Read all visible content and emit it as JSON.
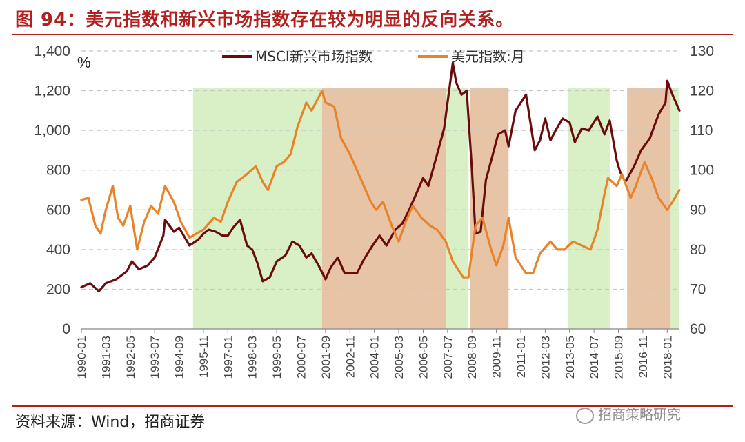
{
  "title": "图 94：美元指数和新兴市场指数存在较为明显的反向关系。",
  "source": "资料来源：Wind，招商证券",
  "watermark": "招商策略研究",
  "colors": {
    "brand": "#b2201f",
    "msci": "#6b0c0c",
    "usd": "#e8832a",
    "green_band": "#d9efc6",
    "tan_band": "#e7c4a6"
  },
  "chart_data": {
    "type": "line",
    "left_unit": "%",
    "left_axis": {
      "min": 0,
      "max": 1400,
      "ticks": [
        0,
        200,
        400,
        600,
        800,
        1000,
        1200,
        1400
      ],
      "tick_labels": [
        "0",
        "200",
        "400",
        "600",
        "800",
        "1,000",
        "1,200",
        "1,400"
      ]
    },
    "right_axis": {
      "min": 60,
      "max": 130,
      "ticks": [
        60,
        70,
        80,
        90,
        100,
        110,
        120,
        130
      ],
      "tick_labels": [
        "60",
        "70",
        "80",
        "90",
        "100",
        "110",
        "120",
        "130"
      ]
    },
    "x_axis": {
      "start": "1990-01",
      "end": "2018-08",
      "tick_labels": [
        "1990-01",
        "1991-03",
        "1992-05",
        "1993-07",
        "1994-09",
        "1995-11",
        "1997-01",
        "1998-03",
        "1999-05",
        "2000-07",
        "2001-09",
        "2002-11",
        "2004-01",
        "2005-03",
        "2006-05",
        "2007-07",
        "2008-09",
        "2009-11",
        "2011-01",
        "2012-03",
        "2013-05",
        "2014-07",
        "2015-09",
        "2016-11",
        "2018-01"
      ]
    },
    "legend": "top-center",
    "grid": "horizontal dashed",
    "shaded_periods": [
      {
        "start": "1995-05",
        "end": "2001-07",
        "color": "green"
      },
      {
        "start": "2001-07",
        "end": "2007-06",
        "color": "tan"
      },
      {
        "start": "2007-06",
        "end": "2008-07",
        "color": "green"
      },
      {
        "start": "2008-08",
        "end": "2010-06",
        "color": "tan"
      },
      {
        "start": "2013-04",
        "end": "2015-04",
        "color": "green"
      },
      {
        "start": "2016-02",
        "end": "2018-03",
        "color": "tan"
      },
      {
        "start": "2018-03",
        "end": "2018-08",
        "color": "green"
      }
    ],
    "series": [
      {
        "name": "MSCI新兴市场指数",
        "axis": "left",
        "color": "#6b0c0c",
        "points": [
          [
            "1990-01",
            210
          ],
          [
            "1990-06",
            230
          ],
          [
            "1990-11",
            190
          ],
          [
            "1991-03",
            230
          ],
          [
            "1991-09",
            250
          ],
          [
            "1992-03",
            290
          ],
          [
            "1992-06",
            340
          ],
          [
            "1992-10",
            300
          ],
          [
            "1993-03",
            320
          ],
          [
            "1993-07",
            360
          ],
          [
            "1993-12",
            470
          ],
          [
            "1994-01",
            550
          ],
          [
            "1994-06",
            490
          ],
          [
            "1994-09",
            510
          ],
          [
            "1995-01",
            450
          ],
          [
            "1995-03",
            420
          ],
          [
            "1995-08",
            450
          ],
          [
            "1995-11",
            480
          ],
          [
            "1996-02",
            500
          ],
          [
            "1996-06",
            490
          ],
          [
            "1996-10",
            470
          ],
          [
            "1997-01",
            470
          ],
          [
            "1997-04",
            510
          ],
          [
            "1997-08",
            550
          ],
          [
            "1997-12",
            420
          ],
          [
            "1998-03",
            400
          ],
          [
            "1998-06",
            330
          ],
          [
            "1998-09",
            240
          ],
          [
            "1999-01",
            260
          ],
          [
            "1999-05",
            340
          ],
          [
            "1999-10",
            370
          ],
          [
            "2000-02",
            440
          ],
          [
            "2000-06",
            420
          ],
          [
            "2000-10",
            360
          ],
          [
            "2001-01",
            380
          ],
          [
            "2001-05",
            320
          ],
          [
            "2001-09",
            250
          ],
          [
            "2001-12",
            310
          ],
          [
            "2002-04",
            360
          ],
          [
            "2002-08",
            280
          ],
          [
            "2002-11",
            280
          ],
          [
            "2003-03",
            280
          ],
          [
            "2003-07",
            350
          ],
          [
            "2003-12",
            420
          ],
          [
            "2004-04",
            470
          ],
          [
            "2004-08",
            420
          ],
          [
            "2005-01",
            500
          ],
          [
            "2005-05",
            530
          ],
          [
            "2005-09",
            600
          ],
          [
            "2006-01",
            680
          ],
          [
            "2006-05",
            760
          ],
          [
            "2006-08",
            720
          ],
          [
            "2007-01",
            880
          ],
          [
            "2007-05",
            1010
          ],
          [
            "2007-10",
            1340
          ],
          [
            "2007-12",
            1240
          ],
          [
            "2008-03",
            1180
          ],
          [
            "2008-06",
            1200
          ],
          [
            "2008-09",
            800
          ],
          [
            "2008-11",
            480
          ],
          [
            "2009-02",
            490
          ],
          [
            "2009-05",
            750
          ],
          [
            "2009-09",
            880
          ],
          [
            "2009-12",
            980
          ],
          [
            "2010-04",
            1000
          ],
          [
            "2010-06",
            920
          ],
          [
            "2010-10",
            1100
          ],
          [
            "2011-04",
            1180
          ],
          [
            "2011-09",
            900
          ],
          [
            "2011-12",
            950
          ],
          [
            "2012-03",
            1060
          ],
          [
            "2012-06",
            950
          ],
          [
            "2012-09",
            1000
          ],
          [
            "2013-01",
            1060
          ],
          [
            "2013-05",
            1040
          ],
          [
            "2013-08",
            940
          ],
          [
            "2013-12",
            1010
          ],
          [
            "2014-04",
            1000
          ],
          [
            "2014-09",
            1070
          ],
          [
            "2015-01",
            980
          ],
          [
            "2015-04",
            1050
          ],
          [
            "2015-08",
            850
          ],
          [
            "2015-10",
            790
          ],
          [
            "2016-01",
            740
          ],
          [
            "2016-06",
            820
          ],
          [
            "2016-10",
            900
          ],
          [
            "2017-03",
            960
          ],
          [
            "2017-08",
            1080
          ],
          [
            "2017-12",
            1140
          ],
          [
            "2018-01",
            1250
          ],
          [
            "2018-04",
            1180
          ],
          [
            "2018-08",
            1100
          ]
        ]
      },
      {
        "name": "美元指数:月",
        "axis": "right",
        "color": "#e8832a",
        "points": [
          [
            "1990-01",
            92.5
          ],
          [
            "1990-05",
            93
          ],
          [
            "1990-09",
            86
          ],
          [
            "1990-12",
            84
          ],
          [
            "1991-03",
            90
          ],
          [
            "1991-07",
            96
          ],
          [
            "1991-10",
            88
          ],
          [
            "1992-01",
            86
          ],
          [
            "1992-05",
            91
          ],
          [
            "1992-09",
            80
          ],
          [
            "1993-01",
            87
          ],
          [
            "1993-05",
            91
          ],
          [
            "1993-09",
            89
          ],
          [
            "1994-01",
            96
          ],
          [
            "1994-06",
            92
          ],
          [
            "1994-10",
            87
          ],
          [
            "1995-03",
            83
          ],
          [
            "1995-07",
            84
          ],
          [
            "1995-11",
            85
          ],
          [
            "1996-05",
            88
          ],
          [
            "1996-09",
            87
          ],
          [
            "1997-01",
            92
          ],
          [
            "1997-06",
            97
          ],
          [
            "1997-12",
            99
          ],
          [
            "1998-05",
            101
          ],
          [
            "1998-09",
            97
          ],
          [
            "1998-12",
            95
          ],
          [
            "1999-05",
            101
          ],
          [
            "1999-09",
            102
          ],
          [
            "2000-01",
            104
          ],
          [
            "2000-05",
            111
          ],
          [
            "2000-10",
            117
          ],
          [
            "2001-01",
            115
          ],
          [
            "2001-07",
            120
          ],
          [
            "2001-09",
            117
          ],
          [
            "2002-02",
            116
          ],
          [
            "2002-06",
            108
          ],
          [
            "2002-11",
            104
          ],
          [
            "2003-03",
            100
          ],
          [
            "2003-07",
            96
          ],
          [
            "2003-11",
            92
          ],
          [
            "2004-02",
            90
          ],
          [
            "2004-06",
            92
          ],
          [
            "2004-11",
            86
          ],
          [
            "2005-03",
            82
          ],
          [
            "2005-07",
            87
          ],
          [
            "2005-11",
            91
          ],
          [
            "2006-04",
            88
          ],
          [
            "2006-09",
            86
          ],
          [
            "2007-01",
            85
          ],
          [
            "2007-06",
            82
          ],
          [
            "2007-10",
            77
          ],
          [
            "2008-04",
            73
          ],
          [
            "2008-07",
            73
          ],
          [
            "2008-11",
            86
          ],
          [
            "2009-03",
            88
          ],
          [
            "2009-08",
            80
          ],
          [
            "2009-11",
            76
          ],
          [
            "2010-03",
            81
          ],
          [
            "2010-06",
            88
          ],
          [
            "2010-10",
            78
          ],
          [
            "2011-04",
            74
          ],
          [
            "2011-08",
            74
          ],
          [
            "2011-12",
            79
          ],
          [
            "2012-06",
            82
          ],
          [
            "2012-10",
            80
          ],
          [
            "2013-02",
            80
          ],
          [
            "2013-07",
            82
          ],
          [
            "2013-12",
            81
          ],
          [
            "2014-05",
            80
          ],
          [
            "2014-09",
            85
          ],
          [
            "2015-01",
            94
          ],
          [
            "2015-03",
            98
          ],
          [
            "2015-08",
            96
          ],
          [
            "2015-11",
            99
          ],
          [
            "2016-04",
            93
          ],
          [
            "2016-07",
            96
          ],
          [
            "2016-12",
            102
          ],
          [
            "2017-04",
            98
          ],
          [
            "2017-08",
            93
          ],
          [
            "2018-01",
            90
          ],
          [
            "2018-04",
            92
          ],
          [
            "2018-08",
            95
          ]
        ]
      }
    ]
  }
}
